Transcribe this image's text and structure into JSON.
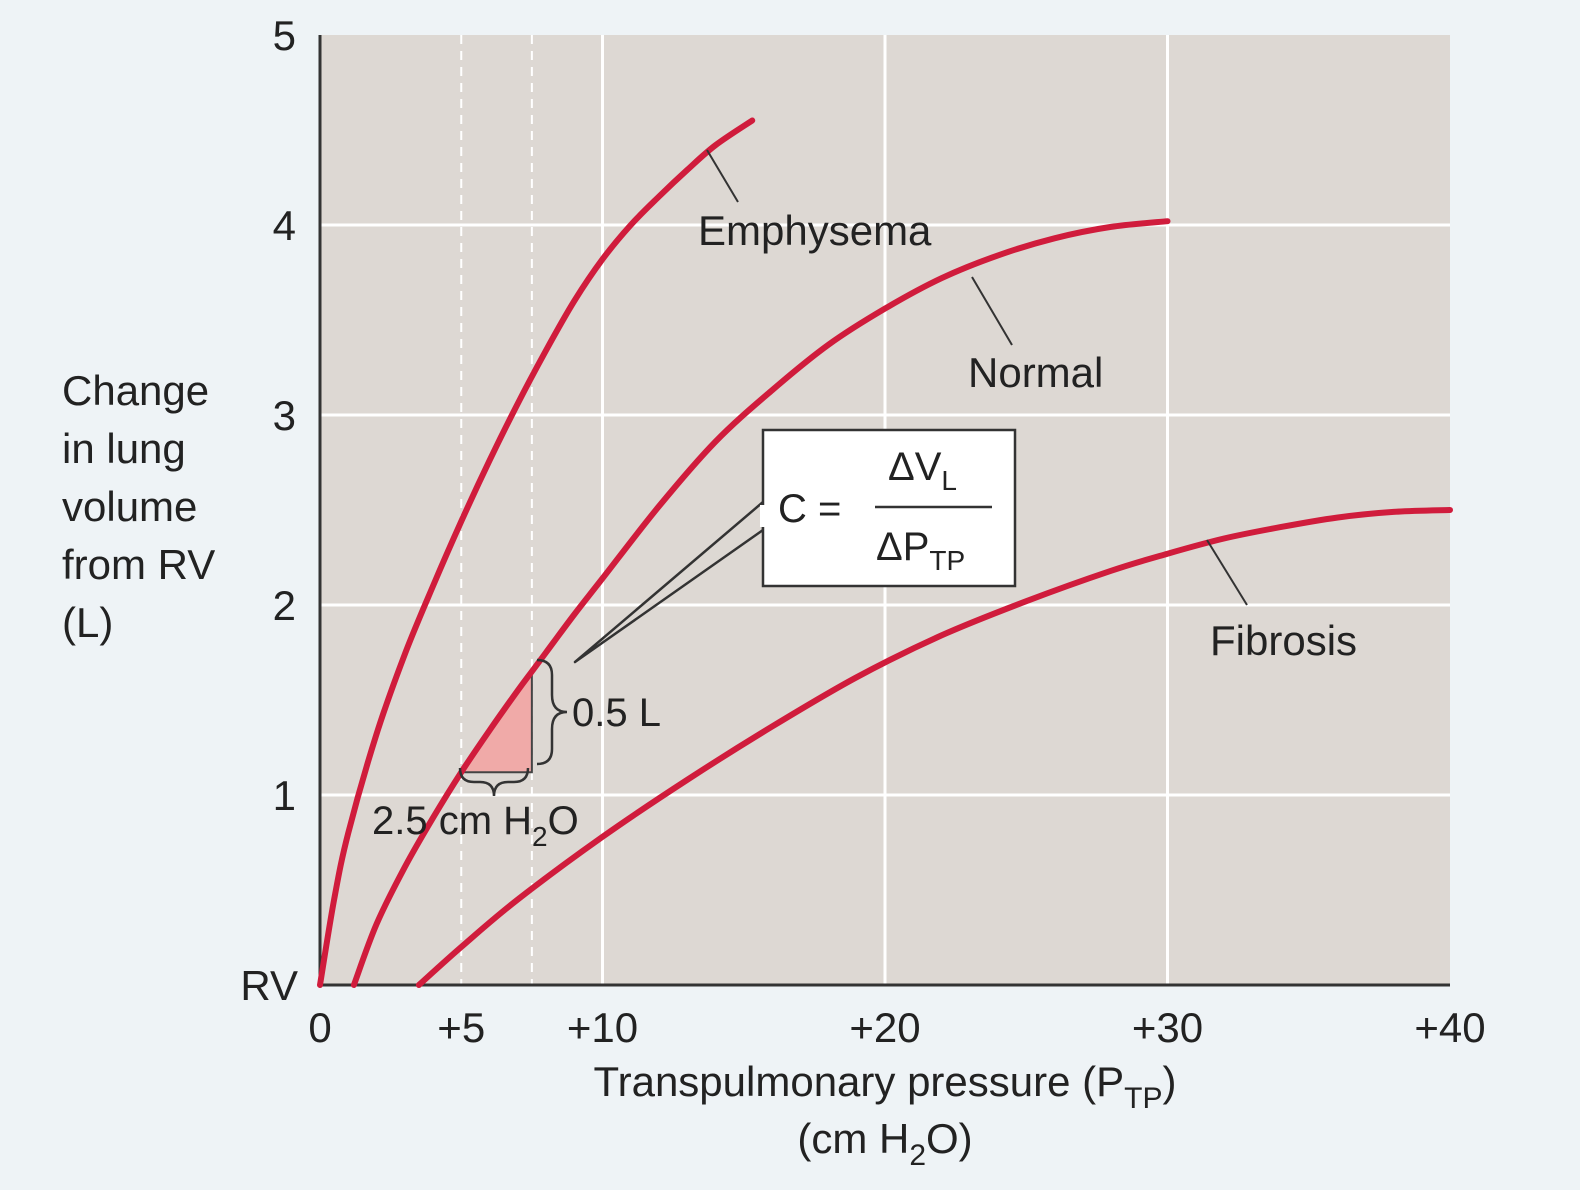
{
  "chart_data": {
    "type": "line",
    "title": "",
    "xlabel": "Transpulmonary pressure (PTP)",
    "xlabel_parts": {
      "main": "Transpulmonary pressure (P",
      "sub": "TP",
      "close": ")"
    },
    "xlabel_units": {
      "pre": "(cm H",
      "sub": "2",
      "post": "O)"
    },
    "ylabel_lines": [
      "Change",
      "in lung",
      "volume",
      "from RV",
      "(L)"
    ],
    "xlim": [
      0,
      40
    ],
    "ylim": [
      0,
      5
    ],
    "x_ticks": [
      {
        "value": 0,
        "label": "0"
      },
      {
        "value": 5,
        "label": "+5"
      },
      {
        "value": 10,
        "label": "+10"
      },
      {
        "value": 20,
        "label": "+20"
      },
      {
        "value": 30,
        "label": "+30"
      },
      {
        "value": 40,
        "label": "+40"
      }
    ],
    "y_ticks": [
      {
        "value": 0,
        "label": "RV"
      },
      {
        "value": 1,
        "label": "1"
      },
      {
        "value": 2,
        "label": "2"
      },
      {
        "value": 3,
        "label": "3"
      },
      {
        "value": 4,
        "label": "4"
      },
      {
        "value": 5,
        "label": "5"
      }
    ],
    "gridlines_x": [
      10,
      20,
      30
    ],
    "gridlines_y": [
      1,
      2,
      3,
      4
    ],
    "dashed_guides_x": [
      5,
      7.5
    ],
    "series": [
      {
        "name": "Emphysema",
        "x": [
          0,
          0.5,
          1,
          2,
          3,
          4,
          5,
          6,
          7,
          8,
          9,
          10,
          11,
          12,
          13,
          14,
          15.3
        ],
        "y": [
          0,
          0.45,
          0.8,
          1.32,
          1.74,
          2.1,
          2.44,
          2.76,
          3.06,
          3.34,
          3.6,
          3.82,
          4.0,
          4.15,
          4.29,
          4.42,
          4.55
        ]
      },
      {
        "name": "Normal",
        "x": [
          1.2,
          2,
          3,
          4,
          5,
          6,
          7,
          7.5,
          8,
          9,
          10,
          12,
          14,
          16,
          18,
          20,
          22,
          24,
          26,
          28,
          30
        ],
        "y": [
          0,
          0.32,
          0.62,
          0.88,
          1.12,
          1.34,
          1.55,
          1.65,
          1.75,
          1.95,
          2.14,
          2.52,
          2.86,
          3.13,
          3.37,
          3.56,
          3.72,
          3.84,
          3.93,
          3.99,
          4.02
        ]
      },
      {
        "name": "Fibrosis",
        "x": [
          3.5,
          5,
          7,
          10,
          13,
          16,
          19,
          22,
          25,
          28,
          30,
          32,
          34,
          36,
          38,
          40
        ],
        "y": [
          0,
          0.2,
          0.45,
          0.78,
          1.08,
          1.36,
          1.62,
          1.84,
          2.02,
          2.18,
          2.27,
          2.35,
          2.41,
          2.46,
          2.49,
          2.5
        ]
      }
    ],
    "annotations": {
      "emphysema_label": "Emphysema",
      "normal_label": "Normal",
      "fibrosis_label": "Fibrosis",
      "delta_v": "0.5 L",
      "delta_p": {
        "pre": "2.5 cm H",
        "sub": "2",
        "post": "O"
      },
      "compliance": {
        "lhs": "C =",
        "num_main": "ΔV",
        "num_sub": "L",
        "den_main": "ΔP",
        "den_sub": "TP"
      },
      "compliance_triangle": {
        "x0": 5,
        "x1": 7.5,
        "y0": 1.12,
        "y1": 1.65
      }
    },
    "colors": {
      "curve": "#d01c3c",
      "plot_bg": "#ddd8d3",
      "page_bg": "#eef3f6",
      "grid": "#ffffff",
      "triangle_fill": "#f0aaa8"
    },
    "legend": "none"
  }
}
